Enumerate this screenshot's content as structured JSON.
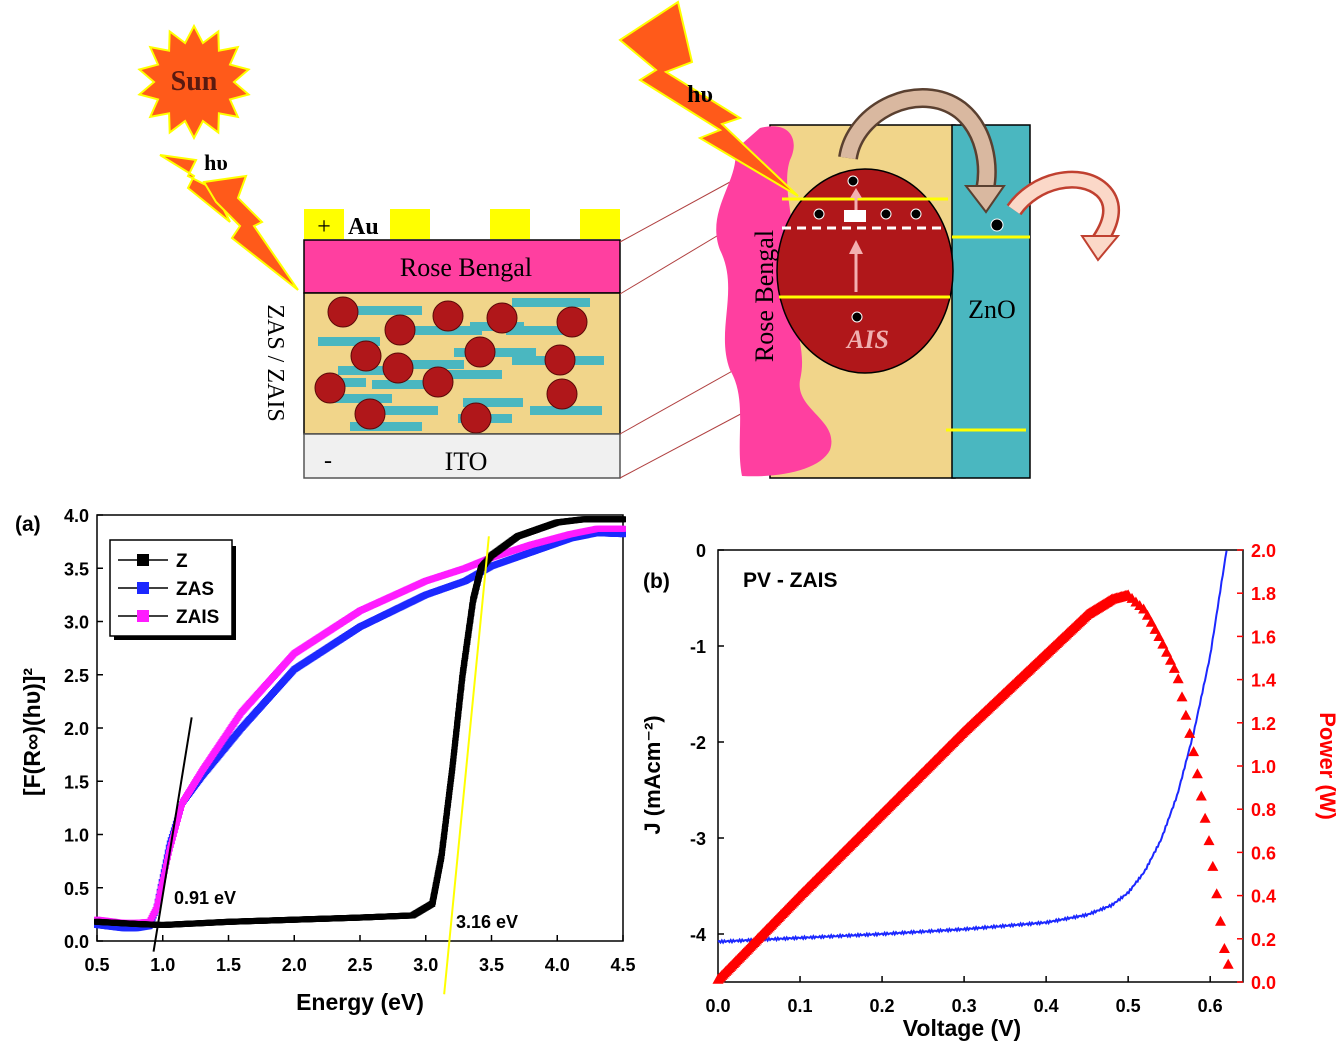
{
  "schematic_left": {
    "sun_label": "Sun",
    "photon_label": "hυ",
    "au_label": "Au",
    "plus_sign": "+",
    "minus_sign": "-",
    "rose_bengal_label": "Rose Bengal",
    "active_layer_label": "ZAS / ZAIS",
    "ito_label": "ITO"
  },
  "schematic_right": {
    "photon_label": "hυ",
    "rose_bengal_label": "Rose Bengal",
    "ais_label": "AIS",
    "zno_label": "ZnO"
  },
  "colors": {
    "sun": "#ff5a1a",
    "lightning": "#ff5a1a",
    "gold": "#ffff00",
    "rose_bengal": "#ff3fa0",
    "host": "#f1d58a",
    "particle": "#b0171a",
    "rod": "#4ab7c0",
    "ito": "#f0f0f0",
    "zno": "#4ab7c0",
    "series_Z": "#000000",
    "series_ZAS": "#1c28ff",
    "series_ZAIS": "#ff1cff",
    "jv_curve": "#1c28ff",
    "power_curve": "#ff0000",
    "tangent_yellow": "#ffff00"
  },
  "chart_data": [
    {
      "type": "scatter",
      "panel_label": "(a)",
      "xlabel": "Energy (eV)",
      "ylabel": "[F(R∞)(hυ)]²",
      "xlim": [
        0.5,
        4.5
      ],
      "ylim": [
        0.0,
        4.0
      ],
      "xticks": [
        "0.5",
        "1.0",
        "1.5",
        "2.0",
        "2.5",
        "3.0",
        "3.5",
        "4.0",
        "4.5"
      ],
      "yticks": [
        "0.0",
        "0.5",
        "1.0",
        "1.5",
        "2.0",
        "2.5",
        "3.0",
        "3.5",
        "4.0"
      ],
      "legend_position": "top-left",
      "series": [
        {
          "name": "Z",
          "color": "#000000",
          "x": [
            0.5,
            0.8,
            1.0,
            1.5,
            2.0,
            2.5,
            2.9,
            3.05,
            3.12,
            3.2,
            3.28,
            3.36,
            3.42,
            3.5,
            3.7,
            4.0,
            4.2,
            4.5
          ],
          "y": [
            0.18,
            0.16,
            0.15,
            0.18,
            0.2,
            0.22,
            0.24,
            0.35,
            0.8,
            1.6,
            2.5,
            3.2,
            3.5,
            3.62,
            3.8,
            3.93,
            3.96,
            3.96
          ]
        },
        {
          "name": "ZAS",
          "color": "#1c28ff",
          "x": [
            0.5,
            0.7,
            0.8,
            0.9,
            0.95,
            1.05,
            1.15,
            1.3,
            1.6,
            2.0,
            2.5,
            3.0,
            3.3,
            3.5,
            3.8,
            4.1,
            4.3,
            4.5
          ],
          "y": [
            0.15,
            0.12,
            0.12,
            0.14,
            0.3,
            0.9,
            1.3,
            1.55,
            2.0,
            2.55,
            2.95,
            3.25,
            3.38,
            3.52,
            3.65,
            3.78,
            3.83,
            3.82
          ]
        },
        {
          "name": "ZAIS",
          "color": "#ff1cff",
          "x": [
            0.5,
            0.7,
            0.8,
            0.9,
            0.95,
            1.05,
            1.15,
            1.3,
            1.6,
            2.0,
            2.5,
            3.0,
            3.3,
            3.5,
            3.8,
            4.1,
            4.3,
            4.5
          ],
          "y": [
            0.2,
            0.17,
            0.17,
            0.18,
            0.3,
            0.85,
            1.3,
            1.6,
            2.15,
            2.7,
            3.1,
            3.38,
            3.5,
            3.6,
            3.72,
            3.82,
            3.87,
            3.87
          ]
        }
      ],
      "tangent_lines": [
        {
          "color": "#000000",
          "x": [
            0.93,
            1.22
          ],
          "y": [
            -0.1,
            2.1
          ]
        },
        {
          "color": "#ffff00",
          "x": [
            3.14,
            3.48
          ],
          "y": [
            -0.5,
            3.8
          ]
        }
      ],
      "annotations": [
        "0.91 eV",
        "3.16 eV"
      ]
    },
    {
      "type": "line",
      "panel_label": "(b)",
      "title": "PV - ZAIS",
      "xlabel": "Voltage (V)",
      "ylabel": "J (mAcm⁻²)",
      "y2label": "Power (W)",
      "xlim": [
        0.0,
        0.64
      ],
      "ylim": [
        -4.5,
        0.0
      ],
      "y2lim": [
        0.0,
        2.0
      ],
      "xticks": [
        "0.0",
        "0.1",
        "0.2",
        "0.3",
        "0.4",
        "0.5",
        "0.6"
      ],
      "yticks": [
        "0",
        "-1",
        "-2",
        "-3",
        "-4"
      ],
      "y2ticks": [
        "0.0",
        "0.2",
        "0.4",
        "0.6",
        "0.8",
        "1.0",
        "1.2",
        "1.4",
        "1.6",
        "1.8",
        "2.0"
      ],
      "series": [
        {
          "axis": "left",
          "color": "#1c28ff",
          "x": [
            0.0,
            0.1,
            0.2,
            0.3,
            0.4,
            0.45,
            0.48,
            0.5,
            0.52,
            0.54,
            0.56,
            0.58,
            0.6,
            0.62
          ],
          "y": [
            -4.08,
            -4.04,
            -4.0,
            -3.95,
            -3.88,
            -3.8,
            -3.7,
            -3.57,
            -3.35,
            -3.02,
            -2.55,
            -1.9,
            -1.1,
            0.0
          ]
        },
        {
          "axis": "right",
          "color": "#ff0000",
          "x": [
            0.0,
            0.1,
            0.2,
            0.3,
            0.4,
            0.45,
            0.48,
            0.5,
            0.52,
            0.54,
            0.56,
            0.58,
            0.6,
            0.62
          ],
          "y": [
            0.01,
            0.4,
            0.78,
            1.16,
            1.52,
            1.7,
            1.77,
            1.79,
            1.72,
            1.58,
            1.42,
            1.06,
            0.62,
            0.08
          ]
        }
      ]
    }
  ]
}
